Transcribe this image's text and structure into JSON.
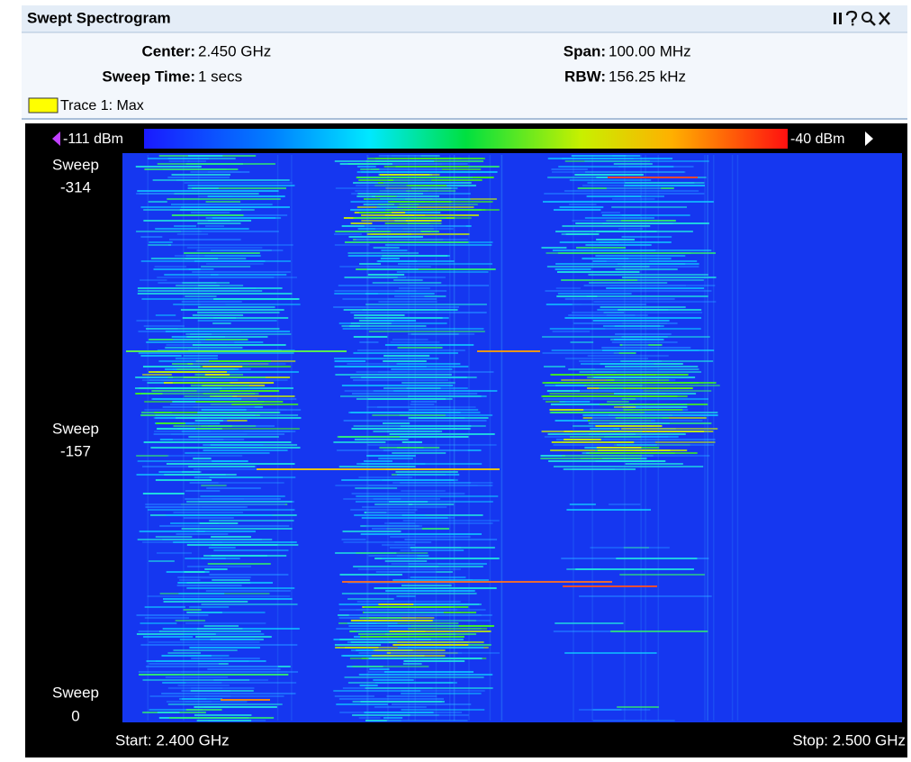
{
  "header": {
    "title": "Swept Spectrogram"
  },
  "settings": {
    "center": {
      "label": "Center:",
      "value": "2.450 GHz"
    },
    "sweep_time": {
      "label": "Sweep Time:",
      "value": "1 secs"
    },
    "span": {
      "label": "Span:",
      "value": "100.00 MHz"
    },
    "rbw": {
      "label": "RBW:",
      "value": "156.25 kHz"
    }
  },
  "trace": "Trace 1: Max",
  "colorbar": {
    "min": "-111 dBm",
    "max": "-40 dBm"
  },
  "sweep_labels": [
    {
      "label": "Sweep",
      "value": "-314"
    },
    {
      "label": "Sweep",
      "value": "-157"
    },
    {
      "label": "Sweep",
      "value": "0"
    }
  ],
  "freq_axis": {
    "start": "Start: 2.400 GHz",
    "stop": "Stop: 2.500 GHz"
  }
}
